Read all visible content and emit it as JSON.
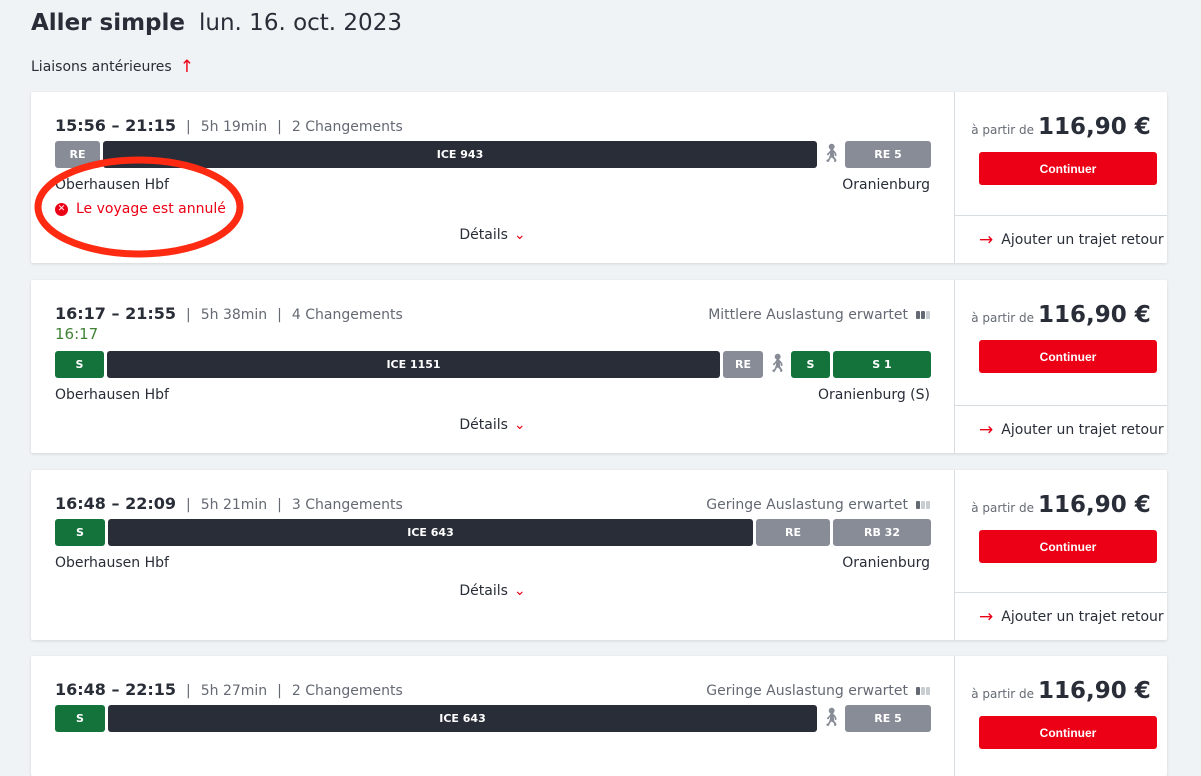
{
  "header": {
    "title": "Aller simple",
    "date": "lun. 16. oct. 2023"
  },
  "earlier_link": {
    "label": "Liaisons antérieures",
    "icon": "arrow-up-icon"
  },
  "labels": {
    "details": "Détails",
    "from": "à partir de",
    "continue": "Continuer",
    "return": "Ajouter un trajet retour"
  },
  "colors": {
    "accent": "#ec0016",
    "regional": "#878c96",
    "ice": "#282d37",
    "sbahn": "#13733a",
    "delay_ok": "#408335"
  },
  "connections": [
    {
      "times": "15:56 – 21:15",
      "duration": "5h 19min",
      "changes": "2 Changements",
      "occupancy": "",
      "delayed_departure": "",
      "segments": [
        {
          "type": "re",
          "label": "RE"
        },
        {
          "type": "ice",
          "label": "ICE 943"
        },
        {
          "type": "walk",
          "label": ""
        },
        {
          "type": "re",
          "label": "RE 5"
        }
      ],
      "from": "Oberhausen Hbf",
      "to": "Oranienburg",
      "status": "Le voyage est annulé",
      "price": "116,90 €"
    },
    {
      "times": "16:17 – 21:55",
      "duration": "5h 38min",
      "changes": "4 Changements",
      "occupancy": "Mittlere Auslastung erwartet",
      "occupancy_level": 2,
      "delayed_departure": "16:17",
      "segments": [
        {
          "type": "s",
          "label": "S"
        },
        {
          "type": "ice",
          "label": "ICE 1151"
        },
        {
          "type": "re",
          "label": "RE"
        },
        {
          "type": "walk",
          "label": ""
        },
        {
          "type": "s",
          "label": "S"
        },
        {
          "type": "s",
          "label": "S 1"
        }
      ],
      "from": "Oberhausen Hbf",
      "to": "Oranienburg (S)",
      "status": "",
      "price": "116,90 €"
    },
    {
      "times": "16:48 – 22:09",
      "duration": "5h 21min",
      "changes": "3 Changements",
      "occupancy": "Geringe Auslastung erwartet",
      "occupancy_level": 1,
      "delayed_departure": "",
      "segments": [
        {
          "type": "s",
          "label": "S"
        },
        {
          "type": "ice",
          "label": "ICE 643"
        },
        {
          "type": "re",
          "label": "RE"
        },
        {
          "type": "re",
          "label": "RB 32"
        }
      ],
      "from": "Oberhausen Hbf",
      "to": "Oranienburg",
      "status": "",
      "price": "116,90 €"
    },
    {
      "times": "16:48 – 22:15",
      "duration": "5h 27min",
      "changes": "2 Changements",
      "occupancy": "Geringe Auslastung erwartet",
      "occupancy_level": 1,
      "delayed_departure": "",
      "segments": [
        {
          "type": "s",
          "label": "S"
        },
        {
          "type": "ice",
          "label": "ICE 643"
        },
        {
          "type": "walk",
          "label": ""
        },
        {
          "type": "re",
          "label": "RE 5"
        }
      ],
      "from": "",
      "to": "",
      "status": "",
      "price": "116,90 €"
    }
  ]
}
